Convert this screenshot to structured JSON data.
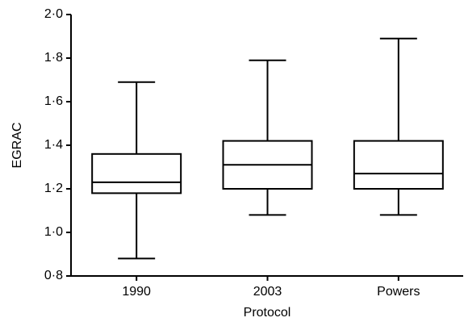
{
  "chart_data": {
    "type": "box",
    "x_label": "Protocol",
    "y_label": "EGRAC",
    "categories": [
      "1990",
      "2003",
      "Powers"
    ],
    "boxes": [
      {
        "min": 0.88,
        "q1": 1.18,
        "median": 1.23,
        "q3": 1.36,
        "max": 1.69
      },
      {
        "min": 1.08,
        "q1": 1.2,
        "median": 1.31,
        "q3": 1.42,
        "max": 1.79
      },
      {
        "min": 1.08,
        "q1": 1.2,
        "median": 1.27,
        "q3": 1.42,
        "max": 1.89
      }
    ],
    "color": "#000000",
    "ylim": [
      0.8,
      2.0
    ],
    "yticks": [
      {
        "value": 0.8,
        "label": "0·8"
      },
      {
        "value": 1.0,
        "label": "1·0"
      },
      {
        "value": 1.2,
        "label": "1·2"
      },
      {
        "value": 1.4,
        "label": "1·4"
      },
      {
        "value": 1.6,
        "label": "1·6"
      },
      {
        "value": 1.8,
        "label": "1·8"
      },
      {
        "value": 2.0,
        "label": "2·0"
      }
    ],
    "grid": false
  }
}
